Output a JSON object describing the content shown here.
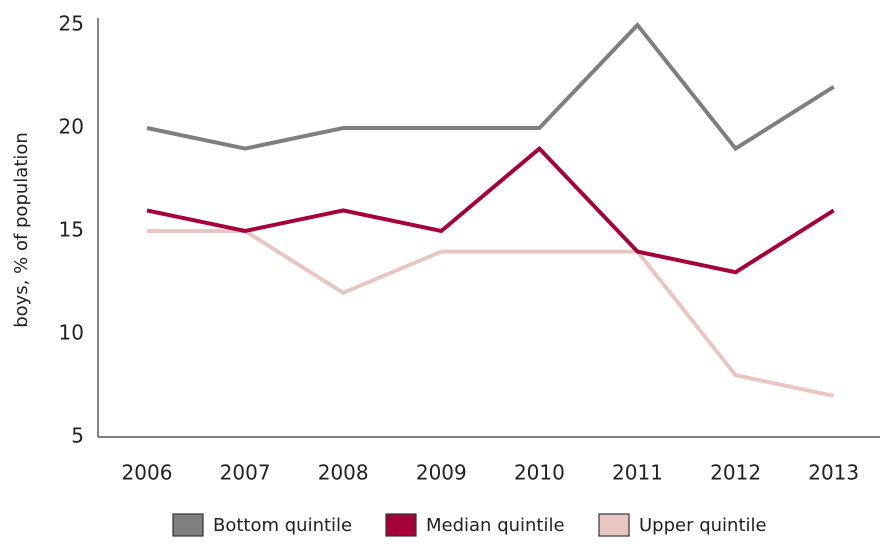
{
  "chart_data": {
    "type": "line",
    "y_label": "boys, % of population",
    "categories": [
      "2006",
      "2007",
      "2008",
      "2009",
      "2010",
      "2011",
      "2012",
      "2013"
    ],
    "series": [
      {
        "name": "Bottom quintile",
        "color": "#7f7f82",
        "values": [
          20,
          19,
          20,
          20,
          20,
          25,
          19,
          22
        ]
      },
      {
        "name": "Median quintile",
        "color": "#a5013a",
        "values": [
          16,
          15,
          16,
          15,
          19,
          14,
          13,
          16
        ]
      },
      {
        "name": "Upper quintile",
        "color": "#e8c6c2",
        "values": [
          15,
          15,
          12,
          14,
          14,
          14,
          8,
          7
        ]
      }
    ],
    "ylim": [
      5,
      25
    ],
    "yticks": [
      5,
      10,
      15,
      20,
      25
    ],
    "grid": false,
    "legend": "bottom"
  }
}
